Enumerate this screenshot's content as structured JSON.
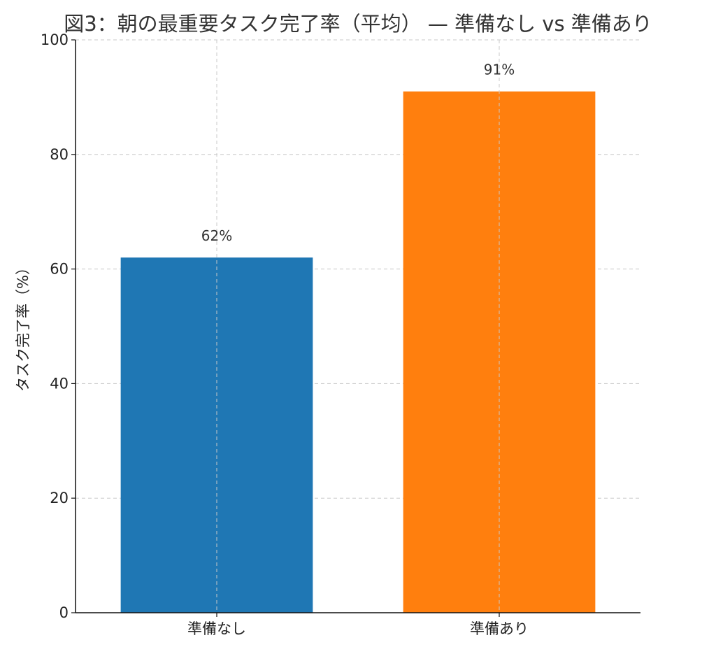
{
  "chart_data": {
    "type": "bar",
    "title": "図3：朝の最重要タスク完了率（平均） — 準備なし vs 準備あり",
    "xlabel": "",
    "ylabel": "タスク完了率（%）",
    "categories": [
      "準備なし",
      "準備あり"
    ],
    "values": [
      62,
      91
    ],
    "value_labels": [
      "62%",
      "91%"
    ],
    "colors": [
      "#1f77b4",
      "#ff7f0e"
    ],
    "ylim": [
      0,
      100
    ],
    "yticks": [
      0,
      20,
      40,
      60,
      80,
      100
    ],
    "ytick_labels": [
      "0",
      "20",
      "40",
      "60",
      "80",
      "100"
    ],
    "grid": true,
    "legend": "none"
  }
}
